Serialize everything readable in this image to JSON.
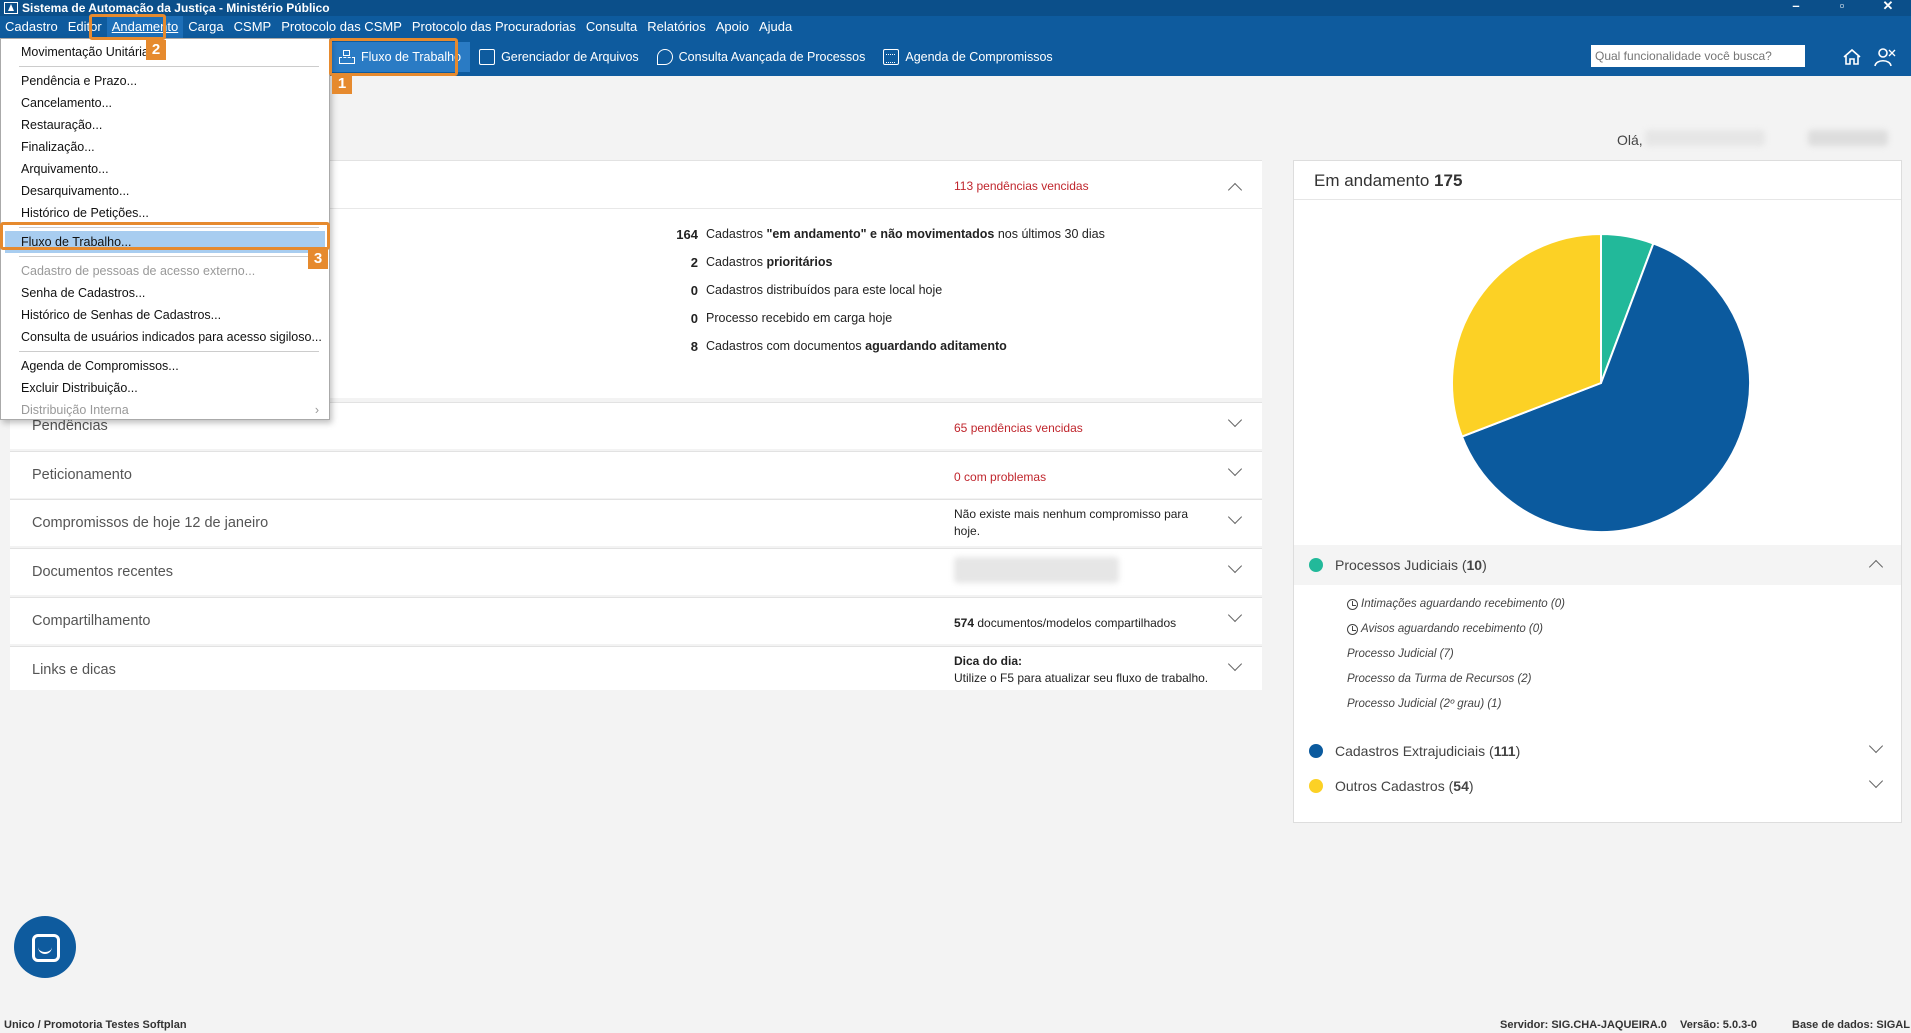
{
  "window": {
    "title": "Sistema de Automação da Justiça - Ministério Público"
  },
  "menu": [
    "Cadastro",
    "Editor",
    "Andamento",
    "Carga",
    "CSMP",
    "Protocolo das CSMP",
    "Protocolo das Procuradorias",
    "Consulta",
    "Relatórios",
    "Apoio",
    "Ajuda"
  ],
  "toolbar": {
    "items": [
      "Fluxo de Trabalho",
      "Gerenciador de Arquivos",
      "Consulta Avançada de Processos",
      "Agenda de Compromissos"
    ],
    "search_placeholder": "Qual funcionalidade você busca?"
  },
  "dropdown": {
    "items": [
      {
        "label": "Movimentação Unitária...",
        "disabled": false
      },
      {
        "label": "Pendência e Prazo...",
        "disabled": false
      },
      {
        "label": "Cancelamento...",
        "disabled": false
      },
      {
        "label": "Restauração...",
        "disabled": false
      },
      {
        "label": "Finalização...",
        "disabled": false
      },
      {
        "label": "Arquivamento...",
        "disabled": false
      },
      {
        "label": "Desarquivamento...",
        "disabled": false
      },
      {
        "label": "Histórico de Petições...",
        "disabled": false
      },
      {
        "label": "Fluxo de Trabalho...",
        "disabled": false
      },
      {
        "label": "Cadastro de pessoas de acesso externo...",
        "disabled": true
      },
      {
        "label": "Senha de Cadastros...",
        "disabled": false
      },
      {
        "label": "Histórico de Senhas de Cadastros...",
        "disabled": false
      },
      {
        "label": "Consulta de usuários indicados para acesso sigiloso...",
        "disabled": false
      },
      {
        "label": "Agenda de Compromissos...",
        "disabled": false
      },
      {
        "label": "Excluir Distribuição...",
        "disabled": false
      },
      {
        "label": "Distribuição Interna",
        "disabled": true
      }
    ]
  },
  "callouts": [
    "1",
    "2",
    "3"
  ],
  "greeting": "Olá,",
  "top_panel": {
    "overdue_count": "113",
    "overdue_text": "pendências vencidas",
    "stats": [
      {
        "num": "164",
        "pre": "Cadastros",
        "bold": "\"em andamento\" e não movimentados",
        "post": "nos últimos 30 dias"
      },
      {
        "num": "2",
        "pre": "Cadastros",
        "bold": "prioritários",
        "post": ""
      },
      {
        "num": "0",
        "pre": "Cadastros distribuídos para este local hoje",
        "bold": "",
        "post": ""
      },
      {
        "num": "0",
        "pre": "Processo recebido em carga hoje",
        "bold": "",
        "post": ""
      },
      {
        "num": "8",
        "pre": "Cadastros com documentos",
        "bold": "aguardando aditamento",
        "post": ""
      }
    ]
  },
  "panels": [
    {
      "title": "Pendências",
      "num": "65",
      "text": "pendências vencidas"
    },
    {
      "title": "Peticionamento",
      "num": "0",
      "text": "com problemas"
    },
    {
      "title": "Compromissos de hoje 12 de janeiro",
      "num": "",
      "text": "Não existe mais nenhum compromisso para hoje."
    },
    {
      "title": "Documentos recentes",
      "num": "",
      "text": ""
    },
    {
      "title": "Compartilhamento",
      "num": "574",
      "text": "documentos/modelos compartilhados"
    },
    {
      "title": "Links e dicas",
      "num": "",
      "text": "Utilize o F5 para atualizar seu fluxo de trabalho.",
      "heading": "Dica do dia:"
    }
  ],
  "card": {
    "title": "Em andamento",
    "total": "175",
    "legend": [
      {
        "label": "Processos Judiciais",
        "count": "10",
        "color": "#22b99a"
      },
      {
        "label": "Cadastros Extrajudiciais",
        "count": "111",
        "color": "#0b5a9e"
      },
      {
        "label": "Outros Cadastros",
        "count": "54",
        "color": "#fcd125"
      }
    ],
    "sub_items": [
      "Intimações aguardando recebimento (0)",
      "Avisos aguardando recebimento (0)",
      "Processo Judicial (7)",
      "Processo da Turma de Recursos (2)",
      "Processo Judicial (2º grau) (1)"
    ]
  },
  "statusbar": {
    "left": "Unico / Promotoria Testes Softplan",
    "server": "Servidor: SIG.CHA-JAQUEIRA.0",
    "version": "Versão: 5.0.3-0",
    "db": "Base de dados: SIGAL"
  }
}
